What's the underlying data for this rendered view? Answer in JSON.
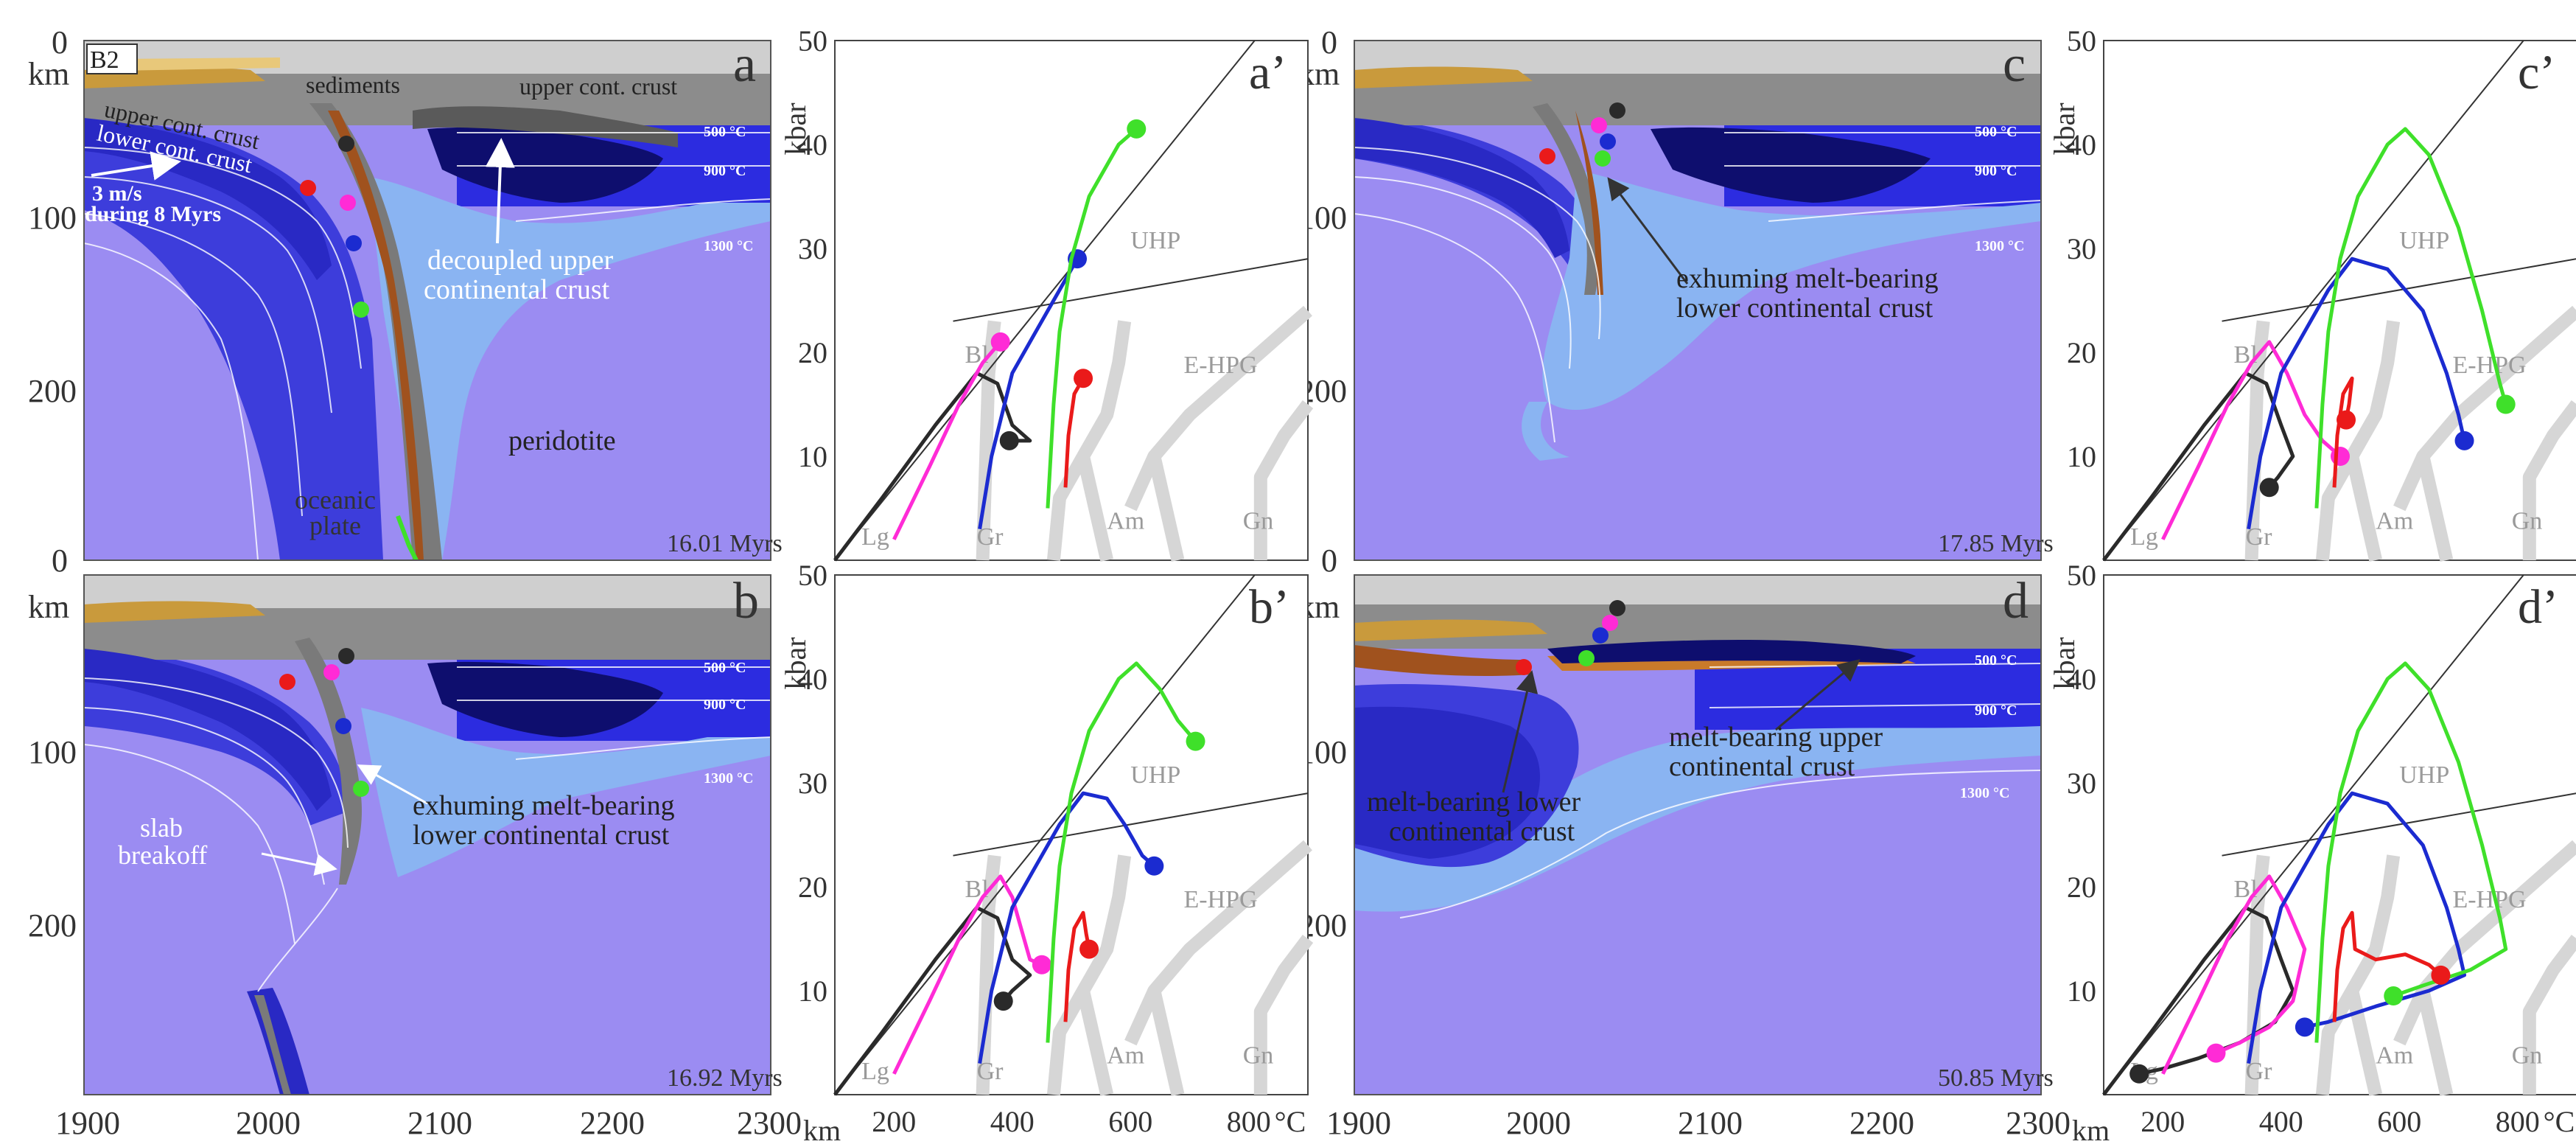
{
  "figure": {
    "axis_units": {
      "km": "km",
      "kbar": "kbar",
      "celsius": "°C"
    },
    "x_axis_km": {
      "min": 1900,
      "max": 2300,
      "ticks": [
        "1900",
        "2000",
        "2100",
        "2200",
        "2300"
      ]
    },
    "y_axis_km": {
      "top_ticks": [
        "0",
        "100",
        "200"
      ],
      "bottom_ticks": [
        "0",
        "100",
        "200"
      ]
    },
    "pt_axes": {
      "pressure_ticks": [
        "10",
        "20",
        "30",
        "40",
        "50"
      ],
      "temperature_ticks": [
        "200",
        "400",
        "600",
        "800"
      ],
      "pressure_range_kbar": [
        0,
        50
      ],
      "temperature_range_c": [
        100,
        900
      ]
    },
    "panels": [
      {
        "id": "a",
        "label": "a",
        "time": "16.01 Myrs",
        "model": "B2"
      },
      {
        "id": "b",
        "label": "b",
        "time": "16.92 Myrs"
      },
      {
        "id": "c",
        "label": "c",
        "time": "17.85 Myrs"
      },
      {
        "id": "d",
        "label": "d",
        "time": "50.85 Myrs"
      }
    ],
    "pt_panels": [
      {
        "id": "a_prime",
        "label": "a’"
      },
      {
        "id": "b_prime",
        "label": "b’"
      },
      {
        "id": "c_prime",
        "label": "c’"
      },
      {
        "id": "d_prime",
        "label": "d’"
      }
    ],
    "isotherms": [
      "500 °C",
      "900 °C",
      "1300 °C"
    ],
    "annotations": {
      "a": {
        "sediments": "sediments",
        "upper_cont_crust_right": "upper cont. crust",
        "upper_cont_crust_left": "upper cont. crust",
        "lower_cont_crust": "lower cont. crust",
        "velocity_1": "3 m/s",
        "velocity_2": "during 8 Myrs",
        "decoupled_1": "decoupled upper",
        "decoupled_2": "continental crust",
        "peridotite": "peridotite",
        "oceanic_1": "oceanic",
        "oceanic_2": "plate"
      },
      "b": {
        "exhuming_1": "exhuming melt-bearing",
        "exhuming_2": "lower continental crust",
        "slab_1": "slab",
        "slab_2": "breakoff"
      },
      "c": {
        "exhuming_1": "exhuming melt-bearing",
        "exhuming_2": "lower continental crust"
      },
      "d": {
        "melt_lower_1": "melt-bearing lower",
        "melt_lower_2": "continental crust",
        "melt_upper_1": "melt-bearing upper",
        "melt_upper_2": "continental crust"
      }
    },
    "facies": {
      "lg": "Lg",
      "gr": "Gr",
      "am": "Am",
      "gn": "Gn",
      "bl": "Bl",
      "uhp": "UHP",
      "ehpg": "E-HPG"
    },
    "marker_colors": {
      "black": "#2a2a2a",
      "magenta": "#ff2bd6",
      "blue": "#1b2bd0",
      "green": "#3fe02a",
      "red": "#ea1a1a"
    },
    "layer_colors": {
      "mantle": "#9b8cf2",
      "oceanic_mantle": "#3d3ddb",
      "deep_oceanic": "#2929c4",
      "light_crust": "#8ab4f2",
      "dark_crust": "#0e0e6e",
      "gray": "#8c8c8c",
      "light_gray": "#cfcfcf",
      "sediment": "#c99a3c"
    }
  },
  "chart_data": [
    {
      "type": "line",
      "panel": "a_prime",
      "title": "a’",
      "xlabel": "°C",
      "ylabel": "kbar",
      "xlim": [
        100,
        900
      ],
      "ylim": [
        0,
        50
      ],
      "series": [
        {
          "name": "black",
          "color": "#2a2a2a",
          "points": [
            [
              100,
              0
            ],
            [
              180,
              6
            ],
            [
              270,
              13
            ],
            [
              340,
              18
            ],
            [
              375,
              17
            ],
            [
              400,
              13
            ],
            [
              430,
              11.5
            ],
            [
              395,
              11.5
            ]
          ],
          "marker": [
            395,
            11.5
          ]
        },
        {
          "name": "magenta",
          "color": "#ff2bd6",
          "points": [
            [
              200,
              2
            ],
            [
              260,
              9
            ],
            [
              310,
              15
            ],
            [
              350,
              19
            ],
            [
              380,
              21
            ]
          ],
          "marker": [
            380,
            21
          ]
        },
        {
          "name": "blue",
          "color": "#1b2bd0",
          "points": [
            [
              345,
              3
            ],
            [
              365,
              10
            ],
            [
              400,
              18
            ],
            [
              440,
              22
            ],
            [
              480,
              26
            ],
            [
              510,
              29
            ]
          ],
          "marker": [
            510,
            29
          ]
        },
        {
          "name": "green",
          "color": "#3fe02a",
          "points": [
            [
              460,
              5
            ],
            [
              470,
              15
            ],
            [
              480,
              22
            ],
            [
              500,
              29
            ],
            [
              530,
              35
            ],
            [
              580,
              40
            ],
            [
              610,
              41.5
            ]
          ],
          "marker": [
            610,
            41.5
          ]
        },
        {
          "name": "red",
          "color": "#ea1a1a",
          "points": [
            [
              490,
              7
            ],
            [
              495,
              12
            ],
            [
              505,
              16
            ],
            [
              520,
              17.5
            ]
          ],
          "marker": [
            520,
            17.5
          ]
        }
      ]
    },
    {
      "type": "line",
      "panel": "b_prime",
      "title": "b’",
      "xlabel": "°C",
      "ylabel": "kbar",
      "xlim": [
        100,
        900
      ],
      "ylim": [
        0,
        50
      ],
      "series": [
        {
          "name": "black",
          "color": "#2a2a2a",
          "points": [
            [
              100,
              0
            ],
            [
              180,
              6
            ],
            [
              270,
              13
            ],
            [
              340,
              18
            ],
            [
              375,
              17
            ],
            [
              400,
              13
            ],
            [
              430,
              11.5
            ],
            [
              400,
              10
            ],
            [
              385,
              9
            ]
          ],
          "marker": [
            385,
            9
          ]
        },
        {
          "name": "magenta",
          "color": "#ff2bd6",
          "points": [
            [
              200,
              2
            ],
            [
              260,
              9
            ],
            [
              310,
              15
            ],
            [
              350,
              19
            ],
            [
              380,
              21
            ],
            [
              400,
              19
            ],
            [
              415,
              16
            ],
            [
              430,
              13
            ],
            [
              450,
              12.5
            ]
          ],
          "marker": [
            450,
            12.5
          ]
        },
        {
          "name": "blue",
          "color": "#1b2bd0",
          "points": [
            [
              345,
              3
            ],
            [
              365,
              10
            ],
            [
              400,
              18
            ],
            [
              440,
              22
            ],
            [
              480,
              26
            ],
            [
              520,
              29
            ],
            [
              560,
              28.5
            ],
            [
              590,
              26
            ],
            [
              620,
              23
            ],
            [
              640,
              22
            ]
          ],
          "marker": [
            640,
            22
          ]
        },
        {
          "name": "green",
          "color": "#3fe02a",
          "points": [
            [
              460,
              5
            ],
            [
              470,
              15
            ],
            [
              480,
              22
            ],
            [
              500,
              29
            ],
            [
              530,
              35
            ],
            [
              580,
              40
            ],
            [
              610,
              41.5
            ],
            [
              650,
              39
            ],
            [
              680,
              36
            ],
            [
              710,
              34
            ]
          ],
          "marker": [
            710,
            34
          ]
        },
        {
          "name": "red",
          "color": "#ea1a1a",
          "points": [
            [
              490,
              7
            ],
            [
              495,
              12
            ],
            [
              505,
              16
            ],
            [
              520,
              17.5
            ],
            [
              525,
              15.5
            ],
            [
              530,
              14
            ]
          ],
          "marker": [
            530,
            14
          ]
        }
      ]
    },
    {
      "type": "line",
      "panel": "c_prime",
      "title": "c’",
      "xlabel": "°C",
      "ylabel": "kbar",
      "xlim": [
        100,
        900
      ],
      "ylim": [
        0,
        50
      ],
      "series": [
        {
          "name": "black",
          "color": "#2a2a2a",
          "points": [
            [
              100,
              0
            ],
            [
              180,
              6
            ],
            [
              270,
              13
            ],
            [
              340,
              18
            ],
            [
              375,
              17
            ],
            [
              400,
              13
            ],
            [
              420,
              10
            ],
            [
              395,
              8
            ],
            [
              380,
              7
            ]
          ],
          "marker": [
            380,
            7
          ]
        },
        {
          "name": "magenta",
          "color": "#ff2bd6",
          "points": [
            [
              200,
              2
            ],
            [
              260,
              9
            ],
            [
              310,
              15
            ],
            [
              350,
              19
            ],
            [
              380,
              21
            ],
            [
              410,
              18
            ],
            [
              440,
              14
            ],
            [
              470,
              11.5
            ],
            [
              500,
              10
            ]
          ],
          "marker": [
            500,
            10
          ]
        },
        {
          "name": "blue",
          "color": "#1b2bd0",
          "points": [
            [
              345,
              3
            ],
            [
              365,
              10
            ],
            [
              400,
              18
            ],
            [
              440,
              22
            ],
            [
              480,
              26
            ],
            [
              520,
              29
            ],
            [
              580,
              28
            ],
            [
              640,
              24
            ],
            [
              680,
              18
            ],
            [
              700,
              14
            ],
            [
              710,
              11.5
            ]
          ],
          "marker": [
            710,
            11.5
          ]
        },
        {
          "name": "green",
          "color": "#3fe02a",
          "points": [
            [
              460,
              5
            ],
            [
              470,
              15
            ],
            [
              480,
              22
            ],
            [
              500,
              29
            ],
            [
              530,
              35
            ],
            [
              580,
              40
            ],
            [
              610,
              41.5
            ],
            [
              650,
              39
            ],
            [
              700,
              32
            ],
            [
              740,
              24
            ],
            [
              770,
              17
            ],
            [
              780,
              15
            ]
          ],
          "marker": [
            780,
            15
          ]
        },
        {
          "name": "red",
          "color": "#ea1a1a",
          "points": [
            [
              490,
              7
            ],
            [
              495,
              12
            ],
            [
              505,
              16
            ],
            [
              520,
              17.5
            ],
            [
              515,
              15
            ],
            [
              510,
              13.5
            ]
          ],
          "marker": [
            510,
            13.5
          ]
        }
      ]
    },
    {
      "type": "line",
      "panel": "d_prime",
      "title": "d’",
      "xlabel": "°C",
      "ylabel": "kbar",
      "xlim": [
        100,
        900
      ],
      "ylim": [
        0,
        50
      ],
      "series": [
        {
          "name": "black",
          "color": "#2a2a2a",
          "points": [
            [
              100,
              0
            ],
            [
              180,
              6
            ],
            [
              270,
              13
            ],
            [
              340,
              18
            ],
            [
              375,
              17
            ],
            [
              400,
              13
            ],
            [
              420,
              10
            ],
            [
              390,
              7
            ],
            [
              330,
              5
            ],
            [
              260,
              3.5
            ],
            [
              200,
              2.5
            ],
            [
              160,
              2
            ]
          ],
          "marker": [
            160,
            2
          ]
        },
        {
          "name": "magenta",
          "color": "#ff2bd6",
          "points": [
            [
              200,
              2
            ],
            [
              260,
              9
            ],
            [
              310,
              15
            ],
            [
              350,
              19
            ],
            [
              380,
              21
            ],
            [
              410,
              18
            ],
            [
              440,
              14
            ],
            [
              420,
              9
            ],
            [
              380,
              6.5
            ],
            [
              330,
              5
            ],
            [
              290,
              4
            ]
          ],
          "marker": [
            290,
            4
          ]
        },
        {
          "name": "blue",
          "color": "#1b2bd0",
          "points": [
            [
              345,
              3
            ],
            [
              365,
              10
            ],
            [
              400,
              18
            ],
            [
              440,
              22
            ],
            [
              480,
              26
            ],
            [
              520,
              29
            ],
            [
              580,
              28
            ],
            [
              640,
              24
            ],
            [
              680,
              18
            ],
            [
              700,
              14
            ],
            [
              710,
              11.5
            ],
            [
              650,
              10
            ],
            [
              560,
              8.5
            ],
            [
              480,
              7
            ],
            [
              440,
              6.5
            ]
          ],
          "marker": [
            440,
            6.5
          ]
        },
        {
          "name": "green",
          "color": "#3fe02a",
          "points": [
            [
              460,
              5
            ],
            [
              470,
              15
            ],
            [
              480,
              22
            ],
            [
              500,
              29
            ],
            [
              530,
              35
            ],
            [
              580,
              40
            ],
            [
              610,
              41.5
            ],
            [
              650,
              39
            ],
            [
              700,
              32
            ],
            [
              740,
              24
            ],
            [
              770,
              17
            ],
            [
              780,
              14
            ],
            [
              720,
              12
            ],
            [
              640,
              10.5
            ],
            [
              590,
              9.5
            ]
          ],
          "marker": [
            590,
            9.5
          ]
        },
        {
          "name": "red",
          "color": "#ea1a1a",
          "points": [
            [
              490,
              7
            ],
            [
              495,
              12
            ],
            [
              505,
              16
            ],
            [
              520,
              17.5
            ],
            [
              525,
              14
            ],
            [
              560,
              13
            ],
            [
              610,
              13.5
            ],
            [
              650,
              12.5
            ],
            [
              670,
              11.5
            ]
          ],
          "marker": [
            670,
            11.5
          ]
        }
      ]
    }
  ]
}
